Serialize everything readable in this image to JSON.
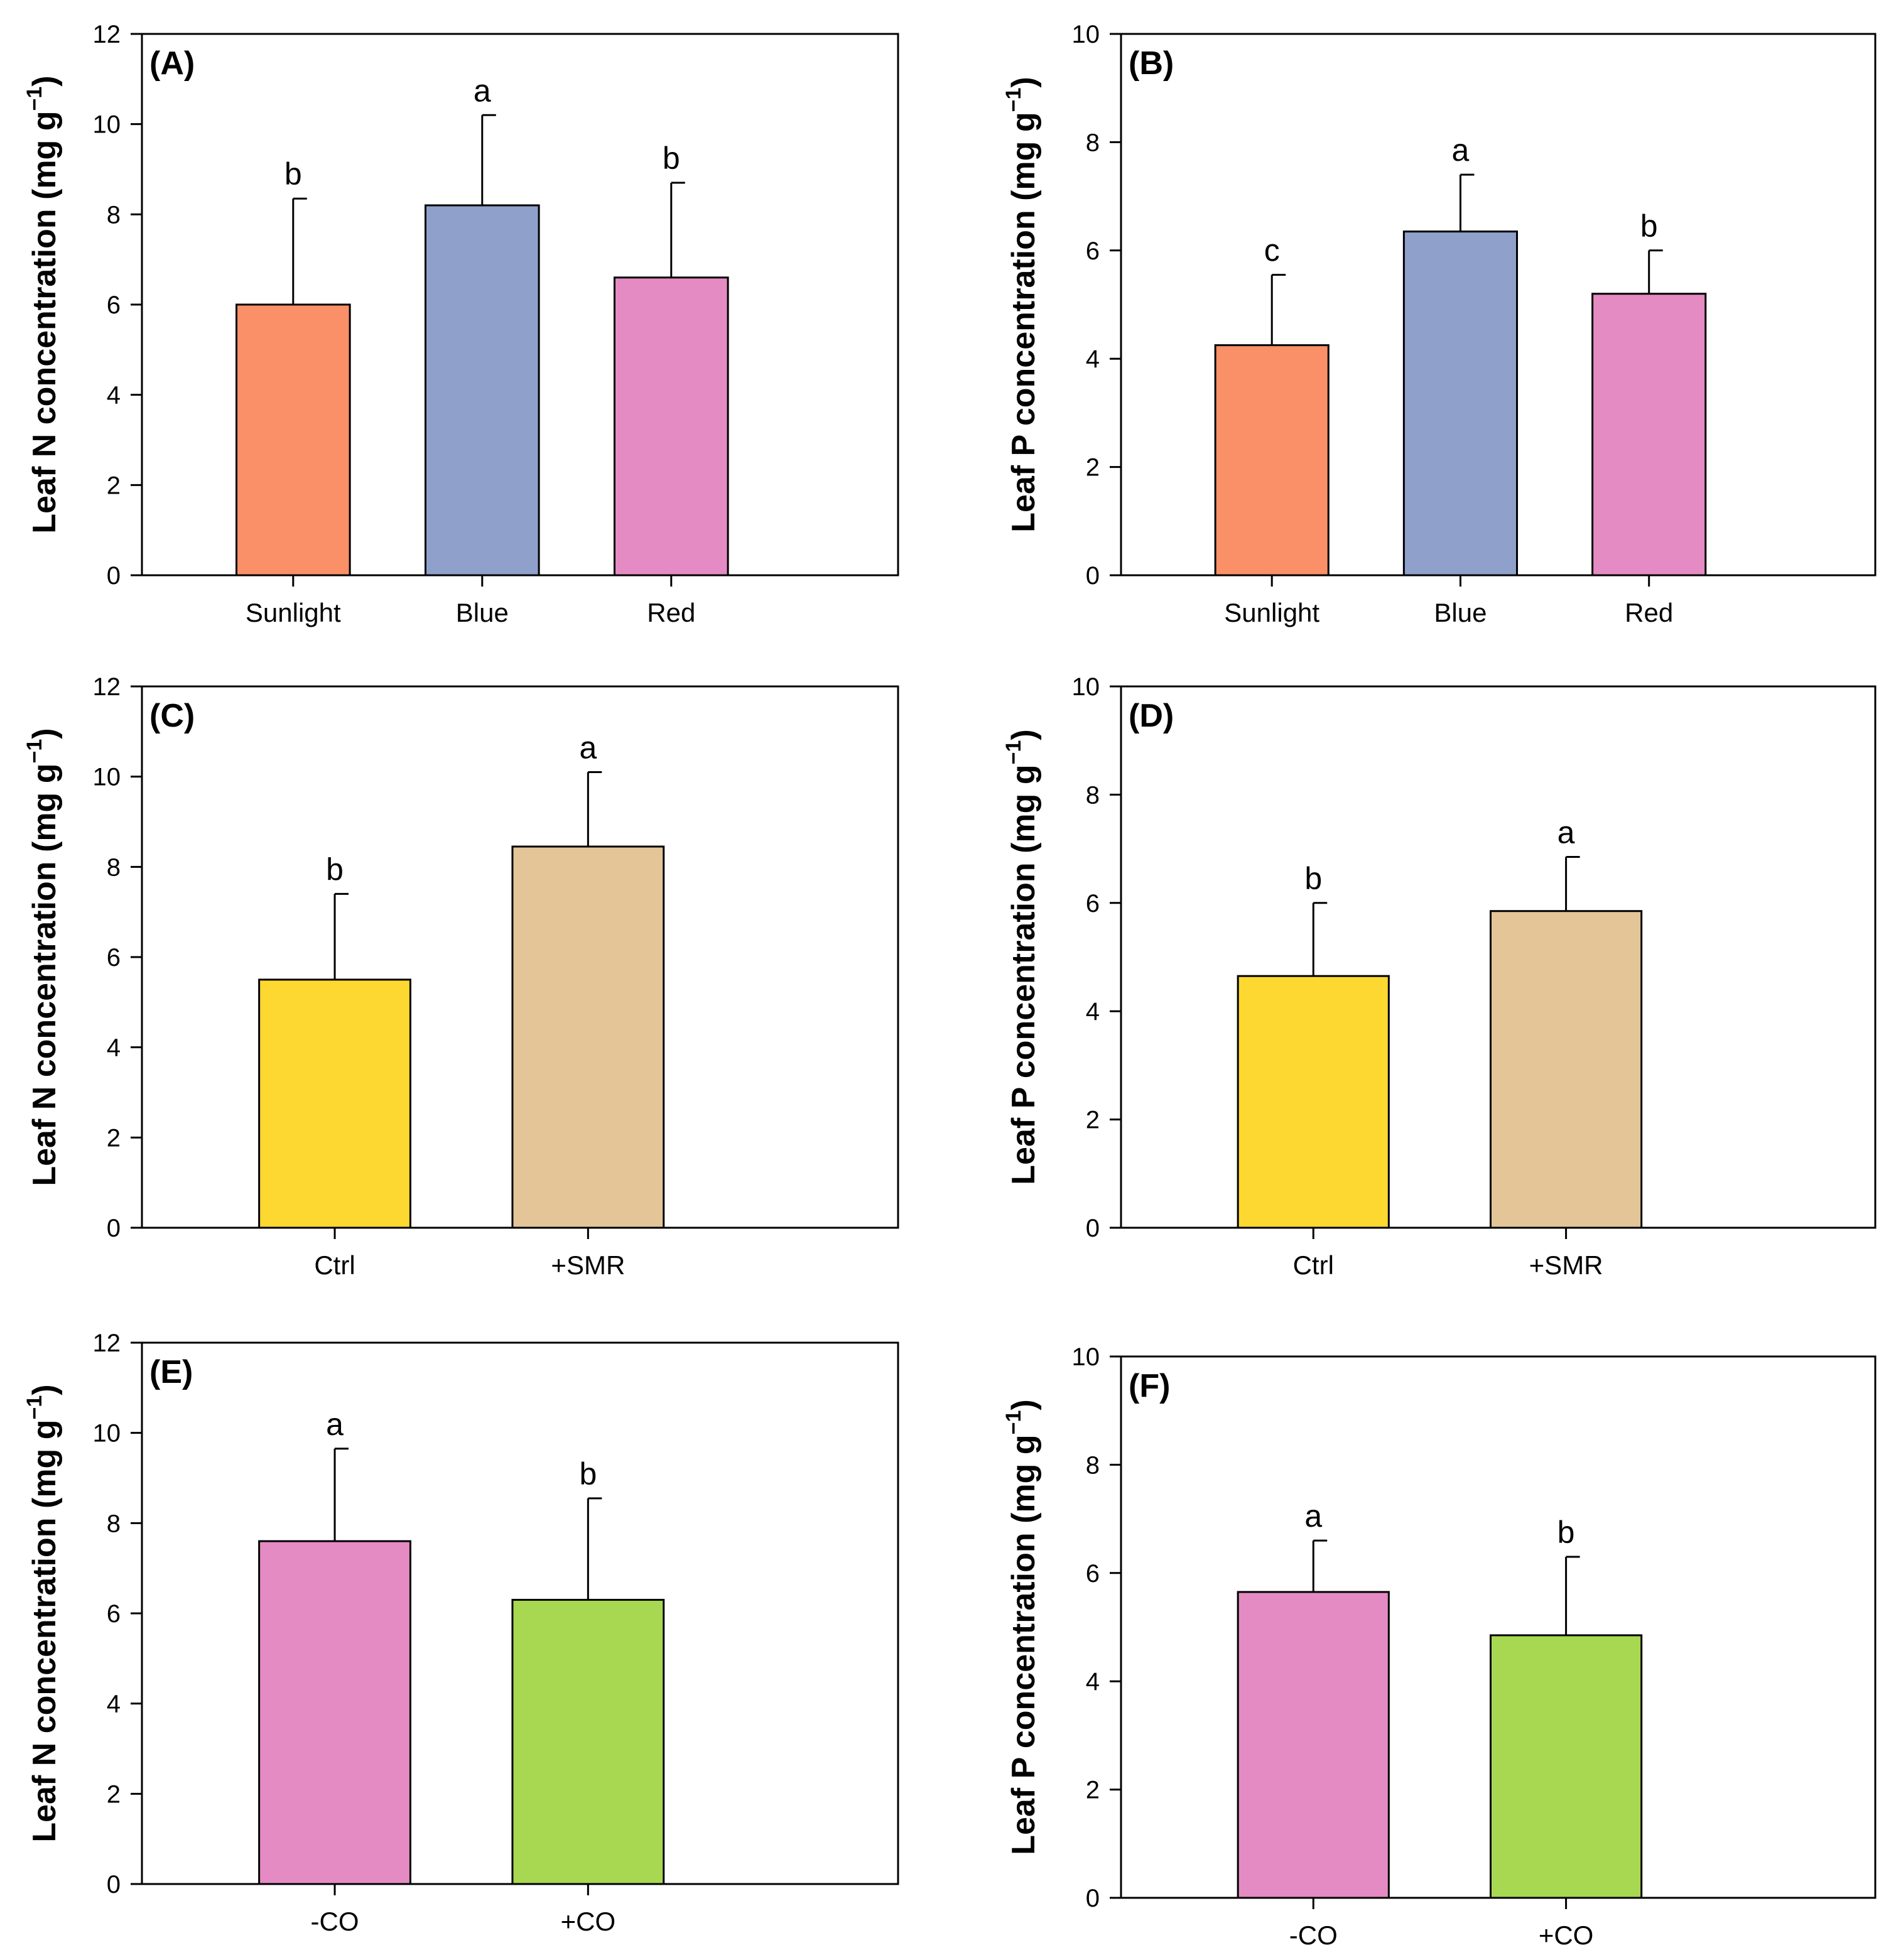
{
  "colors": {
    "sunlight": "#F99068",
    "blue": "#8FA0CB",
    "red": "#E58BC3",
    "ctrl": "#FDD830",
    "smr": "#E3C598",
    "minus_co": "#E58BC3",
    "plus_co": "#A8D752",
    "axis": "#000000"
  },
  "chart_data": [
    {
      "panel_label": "(A)",
      "type": "bar",
      "ylabel_main": "Leaf N concentration (mg g",
      "ylabel_sup": "−1",
      "ylabel_close": ")",
      "ylim": [
        0,
        12
      ],
      "yticks": [
        0,
        2,
        4,
        6,
        8,
        10,
        12
      ],
      "tick_labels": [
        "0",
        "2",
        "4",
        "6",
        "8",
        "10",
        "12"
      ],
      "categories": [
        "Sunlight",
        "Blue",
        "Red"
      ],
      "values": [
        6.0,
        8.2,
        6.6
      ],
      "errors": [
        2.35,
        2.0,
        2.1
      ],
      "letters": [
        "b",
        "a",
        "b"
      ],
      "colors": [
        "#F99068",
        "#8FA0CB",
        "#E58BC3"
      ]
    },
    {
      "panel_label": "(B)",
      "type": "bar",
      "ylabel_main": "Leaf P concentration (mg g",
      "ylabel_sup": "−1",
      "ylabel_close": ")",
      "ylim": [
        0,
        10
      ],
      "yticks": [
        0,
        2,
        4,
        6,
        8,
        10
      ],
      "tick_labels": [
        "0",
        "2",
        "4",
        "6",
        "8",
        "10"
      ],
      "categories": [
        "Sunlight",
        "Blue",
        "Red"
      ],
      "values": [
        4.25,
        6.35,
        5.2
      ],
      "errors": [
        1.3,
        1.05,
        0.8
      ],
      "letters": [
        "c",
        "a",
        "b"
      ],
      "colors": [
        "#F99068",
        "#8FA0CB",
        "#E58BC3"
      ]
    },
    {
      "panel_label": "(C)",
      "type": "bar",
      "ylabel_main": "Leaf N concentration (mg g",
      "ylabel_sup": "−1",
      "ylabel_close": ")",
      "ylim": [
        0,
        12
      ],
      "yticks": [
        0,
        2,
        4,
        6,
        8,
        10,
        12
      ],
      "tick_labels": [
        "0",
        "2",
        "4",
        "6",
        "8",
        "10",
        "12"
      ],
      "categories": [
        "Ctrl",
        "+SMR"
      ],
      "values": [
        5.5,
        8.45
      ],
      "errors": [
        1.9,
        1.65
      ],
      "letters": [
        "b",
        "a"
      ],
      "colors": [
        "#FDD830",
        "#E3C598"
      ]
    },
    {
      "panel_label": "(D)",
      "type": "bar",
      "ylabel_main": "Leaf P concentration (mg g",
      "ylabel_sup": "−1",
      "ylabel_close": ")",
      "ylim": [
        0,
        10
      ],
      "yticks": [
        0,
        2,
        4,
        6,
        8,
        10
      ],
      "tick_labels": [
        "0",
        "2",
        "4",
        "6",
        "8",
        "10"
      ],
      "categories": [
        "Ctrl",
        "+SMR"
      ],
      "values": [
        4.65,
        5.85
      ],
      "errors": [
        1.35,
        1.0
      ],
      "letters": [
        "b",
        "a"
      ],
      "colors": [
        "#FDD830",
        "#E3C598"
      ]
    },
    {
      "panel_label": "(E)",
      "type": "bar",
      "ylabel_main": "Leaf N concentration (mg g",
      "ylabel_sup": "−1",
      "ylabel_close": ")",
      "ylim": [
        0,
        12
      ],
      "yticks": [
        0,
        2,
        4,
        6,
        8,
        10,
        12
      ],
      "tick_labels": [
        "0",
        "2",
        "4",
        "6",
        "8",
        "10",
        "12"
      ],
      "categories": [
        "-CO",
        "+CO"
      ],
      "values": [
        7.6,
        6.3
      ],
      "errors": [
        2.05,
        2.25
      ],
      "letters": [
        "a",
        "b"
      ],
      "colors": [
        "#E58BC3",
        "#A8D752"
      ]
    },
    {
      "panel_label": "(F)",
      "type": "bar",
      "ylabel_main": "Leaf P concentration (mg g",
      "ylabel_sup": "−1",
      "ylabel_close": ")",
      "ylim": [
        0,
        10
      ],
      "yticks": [
        0,
        2,
        4,
        6,
        8,
        10
      ],
      "tick_labels": [
        "0",
        "2",
        "4",
        "6",
        "8",
        "10"
      ],
      "categories": [
        "-CO",
        "+CO"
      ],
      "values": [
        5.65,
        4.85
      ],
      "errors": [
        0.95,
        1.45
      ],
      "letters": [
        "a",
        "b"
      ],
      "colors": [
        "#E58BC3",
        "#A8D752"
      ]
    }
  ]
}
